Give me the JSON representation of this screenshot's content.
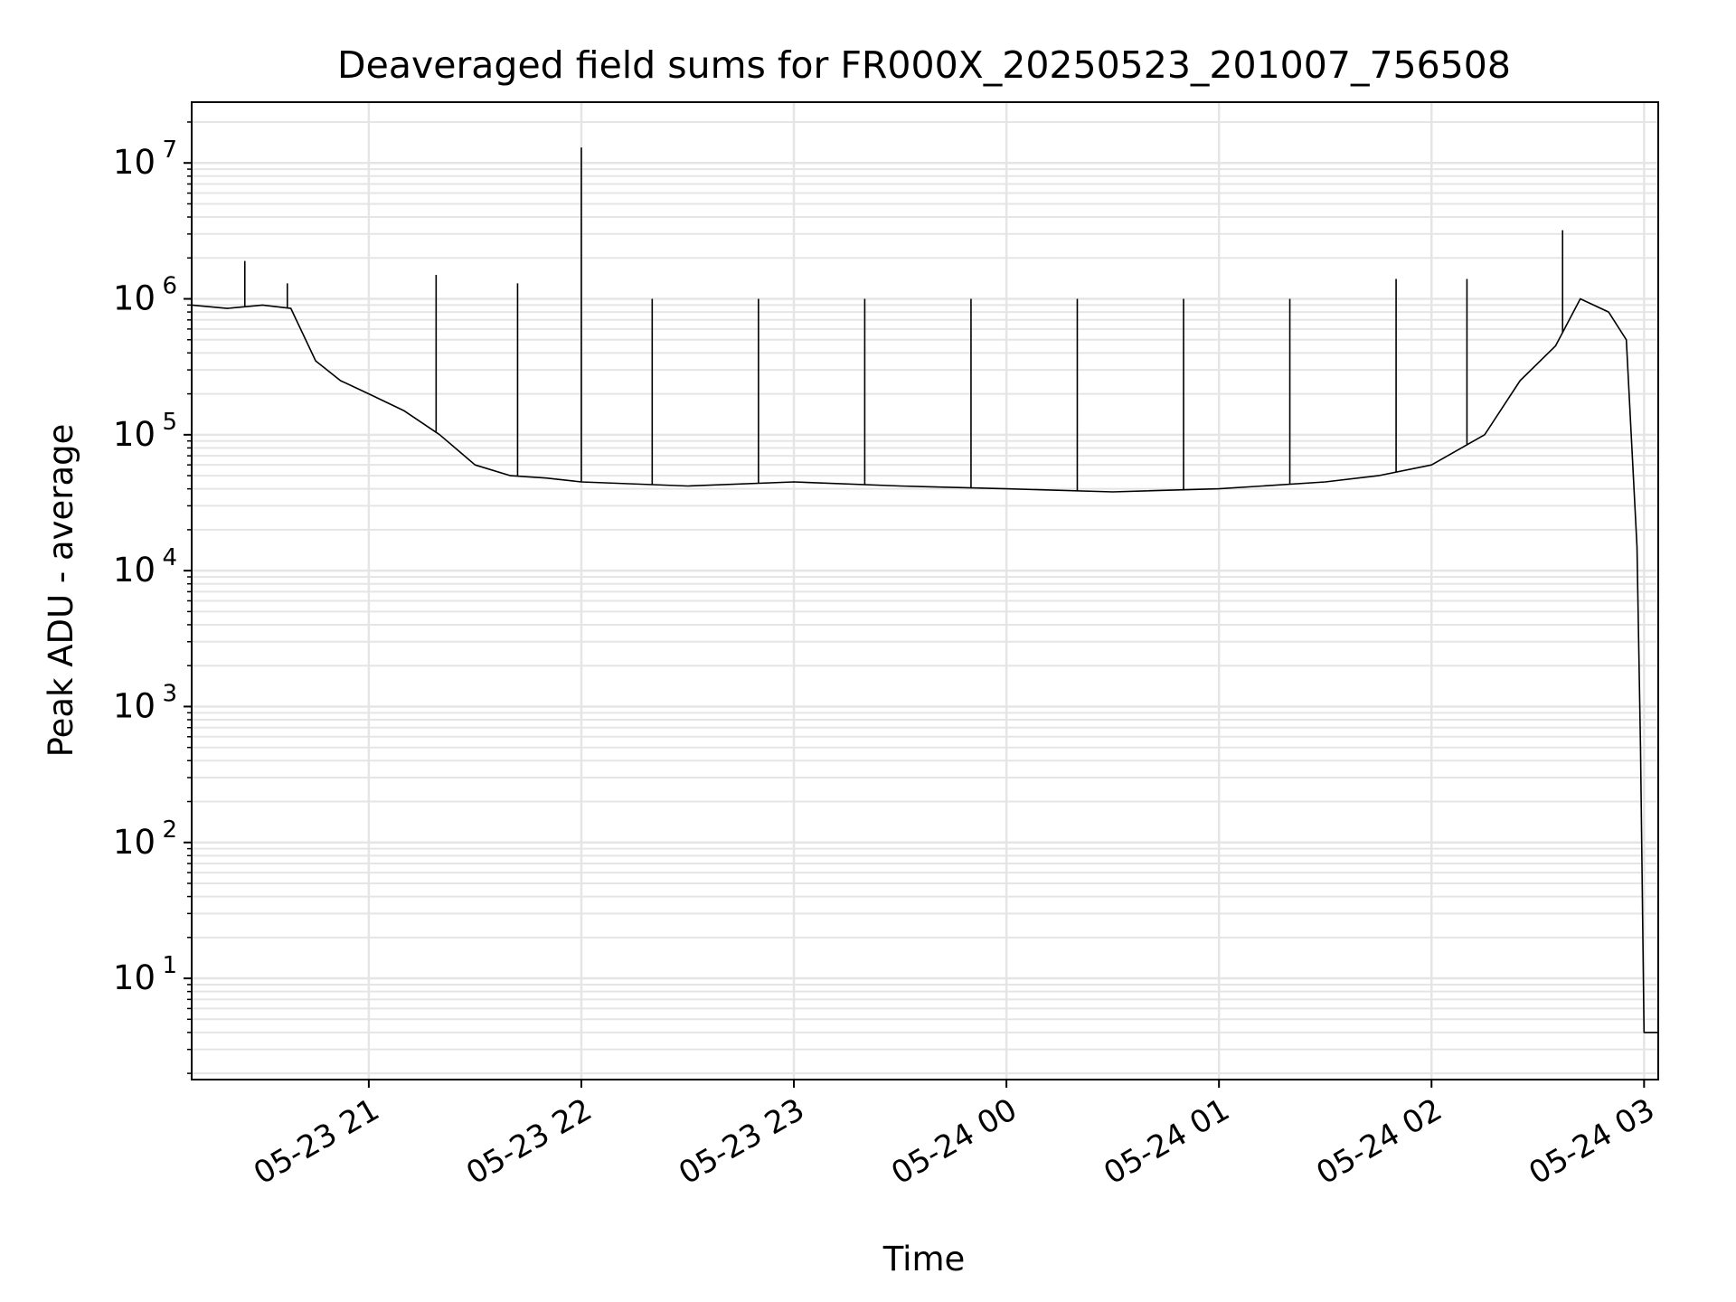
{
  "chart_data": {
    "type": "line",
    "title": "Deaveraged field sums for FR000X_20250523_201007_756508",
    "xlabel": "Time",
    "ylabel": "Peak ADU - average",
    "yscale": "log",
    "ylim": [
      1.8,
      28000000
    ],
    "xlim": [
      "2025-05-23 20:10:00",
      "2025-05-24 03:04:00"
    ],
    "grid": true,
    "line_color": "#000000",
    "grid_color": "#e5e5e5",
    "x_ticks": [
      {
        "value": "2025-05-23 21:00",
        "label": "05-23 21"
      },
      {
        "value": "2025-05-23 22:00",
        "label": "05-23 22"
      },
      {
        "value": "2025-05-23 23:00",
        "label": "05-23 23"
      },
      {
        "value": "2025-05-24 00:00",
        "label": "05-24 00"
      },
      {
        "value": "2025-05-24 01:00",
        "label": "05-24 01"
      },
      {
        "value": "2025-05-24 02:00",
        "label": "05-24 02"
      },
      {
        "value": "2025-05-24 03:00",
        "label": "05-24 03"
      }
    ],
    "y_ticks": [
      {
        "value": 10,
        "base": "10",
        "exp": "1"
      },
      {
        "value": 100,
        "base": "10",
        "exp": "2"
      },
      {
        "value": 1000,
        "base": "10",
        "exp": "3"
      },
      {
        "value": 10000,
        "base": "10",
        "exp": "4"
      },
      {
        "value": 100000,
        "base": "10",
        "exp": "5"
      },
      {
        "value": 1000000,
        "base": "10",
        "exp": "6"
      },
      {
        "value": 10000000,
        "base": "10",
        "exp": "7"
      }
    ],
    "series": [
      {
        "color": "#000000",
        "x": [
          "2025-05-23 20:10",
          "2025-05-23 20:20",
          "2025-05-23 20:30",
          "2025-05-23 20:38",
          "2025-05-23 20:45",
          "2025-05-23 20:52",
          "2025-05-23 21:00",
          "2025-05-23 21:10",
          "2025-05-23 21:20",
          "2025-05-23 21:30",
          "2025-05-23 21:40",
          "2025-05-23 21:50",
          "2025-05-23 22:00",
          "2025-05-23 22:30",
          "2025-05-23 23:00",
          "2025-05-23 23:30",
          "2025-05-24 00:00",
          "2025-05-24 00:30",
          "2025-05-24 01:00",
          "2025-05-24 01:30",
          "2025-05-24 01:45",
          "2025-05-24 02:00",
          "2025-05-24 02:15",
          "2025-05-24 02:25",
          "2025-05-24 02:35",
          "2025-05-24 02:42",
          "2025-05-24 02:50",
          "2025-05-24 02:55",
          "2025-05-24 02:58",
          "2025-05-24 02:59",
          "2025-05-24 03:00",
          "2025-05-24 03:04"
        ],
        "y": [
          900000,
          850000,
          900000,
          850000,
          350000,
          250000,
          200000,
          150000,
          100000,
          60000,
          50000,
          48000,
          45000,
          42000,
          45000,
          42000,
          40000,
          38000,
          40000,
          45000,
          50000,
          60000,
          100000,
          250000,
          450000,
          1000000,
          800000,
          500000,
          15000,
          500,
          4,
          4
        ],
        "spikes": [
          {
            "x": "2025-05-23 20:25",
            "y": 1900000
          },
          {
            "x": "2025-05-23 20:37",
            "y": 1300000
          },
          {
            "x": "2025-05-23 21:19",
            "y": 1500000
          },
          {
            "x": "2025-05-23 21:42",
            "y": 1300000
          },
          {
            "x": "2025-05-23 22:00",
            "y": 13000000
          },
          {
            "x": "2025-05-23 22:20",
            "y": 1000000
          },
          {
            "x": "2025-05-23 22:50",
            "y": 1000000
          },
          {
            "x": "2025-05-23 23:20",
            "y": 1000000
          },
          {
            "x": "2025-05-23 23:50",
            "y": 1000000
          },
          {
            "x": "2025-05-24 00:20",
            "y": 1000000
          },
          {
            "x": "2025-05-24 00:50",
            "y": 1000000
          },
          {
            "x": "2025-05-24 01:20",
            "y": 1000000
          },
          {
            "x": "2025-05-24 01:50",
            "y": 1400000
          },
          {
            "x": "2025-05-24 02:10",
            "y": 1400000
          },
          {
            "x": "2025-05-24 02:37",
            "y": 3200000
          }
        ]
      }
    ]
  }
}
